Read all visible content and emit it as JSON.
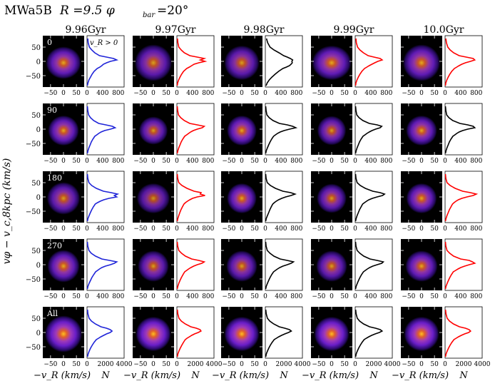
{
  "figure": {
    "title": "MWa5B",
    "title_math": "R =9.5 φ",
    "title_sub": "bar",
    "title_end": "=20°"
  },
  "chart_data": {
    "type": "heatmap",
    "columns": [
      "9.96Gyr",
      "9.97Gyr",
      "9.98Gyr",
      "9.99Gyr",
      "10.0Gyr"
    ],
    "rows": [
      "0",
      "90",
      "180",
      "270",
      "All"
    ],
    "annotation": "v_R > 0",
    "ylabel": "vφ − v_c,8kpc (km/s)",
    "xlabel_map": "−v_R (km/s)",
    "xlabel_hist": "N",
    "map_xticks": [
      "−50",
      "0",
      "50"
    ],
    "map_yticks": [
      "50",
      "0",
      "−50"
    ],
    "map_xlim": [
      -80,
      80
    ],
    "map_ylim": [
      -90,
      90
    ],
    "hist_xticks_rows": [
      "0",
      "400",
      "800"
    ],
    "hist_xticks_all": [
      "0",
      "2000",
      "4000"
    ],
    "hist_xlim_rows": [
      0,
      950
    ],
    "hist_xlim_all": [
      0,
      4000
    ],
    "colormap": [
      "#000000",
      "#2a0a6b",
      "#6a1ec8",
      "#a03ab8",
      "#e0602a",
      "#ffc020"
    ],
    "hist_y": [
      80,
      65,
      50,
      40,
      30,
      20,
      15,
      10,
      5,
      0,
      -5,
      -10,
      -15,
      -20,
      -25,
      -35,
      -45,
      -55,
      -65,
      -75,
      -85
    ],
    "hist_colors": [
      [
        "#1f24d8",
        "#ff0000",
        "#000000",
        "#ff0000",
        "#ff0000"
      ],
      [
        "#1f24d8",
        "#ff0000",
        "#000000",
        "#000000",
        "#000000"
      ],
      [
        "#1f24d8",
        "#ff0000",
        "#000000",
        "#000000",
        "#ff0000"
      ],
      [
        "#1f24d8",
        "#ff0000",
        "#000000",
        "#000000",
        "#ff0000"
      ],
      [
        "#1f24d8",
        "#ff0000",
        "#000000",
        "#000000",
        "#ff0000"
      ]
    ],
    "hist_values": [
      [
        [
          20,
          30,
          60,
          120,
          200,
          320,
          500,
          680,
          760,
          600,
          500,
          420,
          380,
          330,
          260,
          180,
          130,
          90,
          50,
          25,
          10
        ],
        [
          15,
          25,
          50,
          110,
          190,
          330,
          520,
          700,
          600,
          720,
          560,
          440,
          380,
          320,
          250,
          170,
          120,
          80,
          45,
          20,
          10
        ],
        [
          30,
          60,
          120,
          220,
          350,
          470,
          560,
          640,
          700,
          680,
          690,
          660,
          620,
          540,
          450,
          340,
          250,
          170,
          100,
          50,
          20
        ],
        [
          20,
          30,
          60,
          120,
          210,
          330,
          480,
          640,
          690,
          580,
          500,
          430,
          360,
          300,
          240,
          170,
          120,
          80,
          45,
          20,
          10
        ],
        [
          20,
          35,
          70,
          130,
          220,
          360,
          540,
          720,
          760,
          650,
          520,
          430,
          360,
          300,
          240,
          170,
          120,
          80,
          45,
          20,
          10
        ]
      ],
      [
        [
          10,
          20,
          40,
          90,
          170,
          300,
          480,
          650,
          720,
          600,
          450,
          360,
          300,
          250,
          200,
          150,
          110,
          80,
          50,
          25,
          10
        ],
        [
          10,
          20,
          40,
          100,
          190,
          330,
          520,
          700,
          650,
          520,
          420,
          350,
          300,
          250,
          200,
          150,
          110,
          80,
          50,
          25,
          10
        ],
        [
          10,
          20,
          40,
          100,
          200,
          360,
          560,
          700,
          780,
          620,
          480,
          380,
          310,
          260,
          210,
          160,
          120,
          85,
          55,
          25,
          10
        ],
        [
          10,
          20,
          40,
          100,
          200,
          360,
          560,
          680,
          640,
          520,
          430,
          360,
          300,
          250,
          200,
          150,
          110,
          80,
          50,
          25,
          10
        ],
        [
          10,
          20,
          40,
          100,
          200,
          380,
          580,
          720,
          760,
          580,
          450,
          360,
          300,
          250,
          200,
          150,
          110,
          80,
          50,
          25,
          10
        ]
      ],
      [
        [
          10,
          20,
          50,
          120,
          240,
          420,
          620,
          780,
          700,
          760,
          560,
          430,
          340,
          270,
          210,
          160,
          120,
          85,
          55,
          25,
          10
        ],
        [
          10,
          20,
          50,
          130,
          260,
          440,
          620,
          600,
          720,
          520,
          400,
          330,
          270,
          220,
          180,
          140,
          105,
          75,
          50,
          25,
          10
        ],
        [
          10,
          20,
          50,
          130,
          260,
          450,
          650,
          760,
          660,
          520,
          420,
          340,
          280,
          230,
          190,
          150,
          115,
          85,
          55,
          25,
          10
        ],
        [
          10,
          20,
          50,
          130,
          260,
          450,
          640,
          750,
          700,
          560,
          440,
          350,
          290,
          240,
          190,
          150,
          110,
          80,
          50,
          25,
          10
        ],
        [
          10,
          20,
          50,
          130,
          260,
          450,
          650,
          800,
          720,
          560,
          430,
          340,
          280,
          230,
          190,
          150,
          110,
          80,
          50,
          25,
          10
        ]
      ],
      [
        [
          10,
          20,
          50,
          110,
          220,
          380,
          580,
          760,
          700,
          600,
          470,
          380,
          320,
          270,
          220,
          170,
          125,
          90,
          55,
          25,
          10
        ],
        [
          10,
          20,
          50,
          120,
          220,
          380,
          560,
          700,
          640,
          520,
          430,
          360,
          300,
          250,
          200,
          155,
          115,
          80,
          50,
          25,
          10
        ],
        [
          10,
          20,
          50,
          120,
          220,
          380,
          560,
          720,
          660,
          560,
          450,
          370,
          310,
          260,
          210,
          160,
          120,
          85,
          55,
          25,
          10
        ],
        [
          10,
          20,
          50,
          120,
          220,
          380,
          560,
          720,
          680,
          560,
          450,
          370,
          310,
          260,
          210,
          160,
          120,
          85,
          55,
          25,
          10
        ],
        [
          10,
          20,
          50,
          120,
          220,
          400,
          620,
          700,
          760,
          620,
          500,
          400,
          330,
          270,
          210,
          160,
          120,
          85,
          55,
          25,
          10
        ]
      ],
      [
        [
          50,
          100,
          220,
          480,
          900,
          1500,
          2100,
          2500,
          2700,
          2500,
          2100,
          1800,
          1500,
          1250,
          1000,
          750,
          550,
          380,
          240,
          120,
          50
        ],
        [
          50,
          100,
          220,
          480,
          900,
          1500,
          2100,
          2500,
          2600,
          2300,
          1900,
          1600,
          1350,
          1100,
          900,
          700,
          520,
          360,
          220,
          110,
          50
        ],
        [
          50,
          100,
          220,
          480,
          900,
          1500,
          2100,
          2600,
          2800,
          2500,
          2100,
          1750,
          1450,
          1200,
          950,
          720,
          530,
          370,
          230,
          110,
          50
        ],
        [
          50,
          100,
          220,
          480,
          900,
          1550,
          2200,
          2700,
          2900,
          2600,
          2150,
          1780,
          1470,
          1200,
          960,
          730,
          540,
          370,
          230,
          110,
          50
        ],
        [
          50,
          100,
          220,
          480,
          900,
          1550,
          2200,
          2600,
          2750,
          2550,
          2100,
          1750,
          1450,
          1200,
          950,
          720,
          530,
          370,
          230,
          110,
          50
        ]
      ]
    ],
    "blob_shapes": [
      [
        [
          0.85,
          0.75,
          0.9
        ],
        [
          0.9,
          0.85,
          0.85
        ],
        [
          0.85,
          0.8,
          0.85
        ],
        [
          0.95,
          0.8,
          0.9
        ],
        [
          0.9,
          0.85,
          0.9
        ]
      ],
      [
        [
          0.75,
          0.7,
          0.9
        ],
        [
          0.7,
          0.65,
          0.85
        ],
        [
          0.72,
          0.7,
          0.9
        ],
        [
          0.7,
          0.68,
          0.85
        ],
        [
          0.75,
          0.7,
          0.9
        ]
      ],
      [
        [
          0.8,
          0.75,
          0.85
        ],
        [
          0.8,
          0.7,
          0.8
        ],
        [
          0.72,
          0.7,
          0.9
        ],
        [
          0.72,
          0.68,
          0.85
        ],
        [
          0.74,
          0.7,
          0.9
        ]
      ],
      [
        [
          0.78,
          0.75,
          0.9
        ],
        [
          0.75,
          0.72,
          0.85
        ],
        [
          0.75,
          0.72,
          0.85
        ],
        [
          0.75,
          0.72,
          0.85
        ],
        [
          0.78,
          0.72,
          0.9
        ]
      ],
      [
        [
          0.9,
          0.85,
          1.0
        ],
        [
          0.85,
          0.8,
          1.0
        ],
        [
          0.85,
          0.8,
          1.0
        ],
        [
          0.85,
          0.8,
          1.0
        ],
        [
          0.85,
          0.8,
          1.0
        ]
      ]
    ]
  }
}
